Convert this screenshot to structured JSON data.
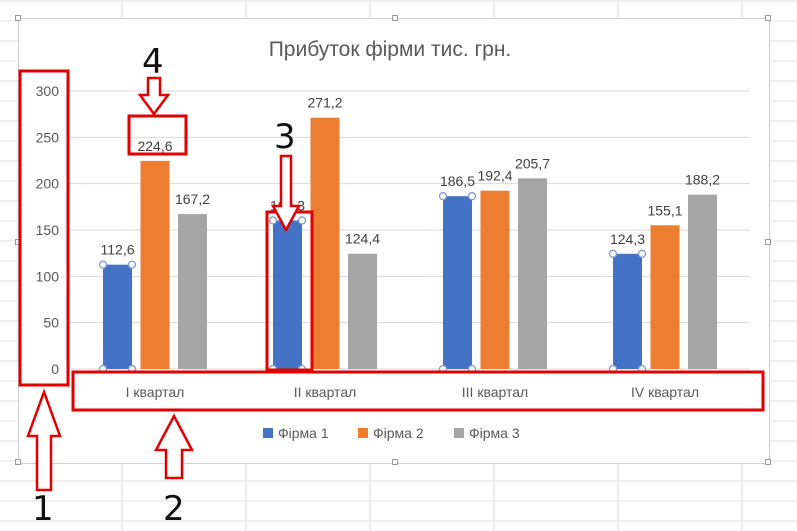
{
  "chart_data": {
    "type": "bar",
    "title": "Прибуток фірми тис. грн.",
    "categories": [
      "I квартал",
      "II квартал",
      "III квартал",
      "IV квартал"
    ],
    "series": [
      {
        "name": "Фірма 1",
        "color": "#4472C4",
        "values": [
          112.6,
          160.3,
          186.5,
          124.3
        ],
        "labels": [
          "112,6",
          "160,3",
          "186,5",
          "124,3"
        ]
      },
      {
        "name": "Фірма 2",
        "color": "#ED7D31",
        "values": [
          224.6,
          271.2,
          192.4,
          155.1
        ],
        "labels": [
          "224,6",
          "271,2",
          "192,4",
          "155,1"
        ]
      },
      {
        "name": "Фірма 3",
        "color": "#A5A5A5",
        "values": [
          167.2,
          124.4,
          205.7,
          188.2
        ],
        "labels": [
          "167,2",
          "124,4",
          "205,7",
          "188,2"
        ]
      }
    ],
    "ylim": [
      0,
      300
    ],
    "yticks": [
      "0",
      "50",
      "100",
      "150",
      "200",
      "250",
      "300"
    ],
    "grid": true,
    "legend_position": "bottom"
  },
  "annotations": {
    "callouts": [
      {
        "number": "1",
        "target": "value-axis"
      },
      {
        "number": "2",
        "target": "category-axis"
      },
      {
        "number": "3",
        "target": "data-point"
      },
      {
        "number": "4",
        "target": "data-label"
      }
    ],
    "highlight_color": "#E00000"
  }
}
